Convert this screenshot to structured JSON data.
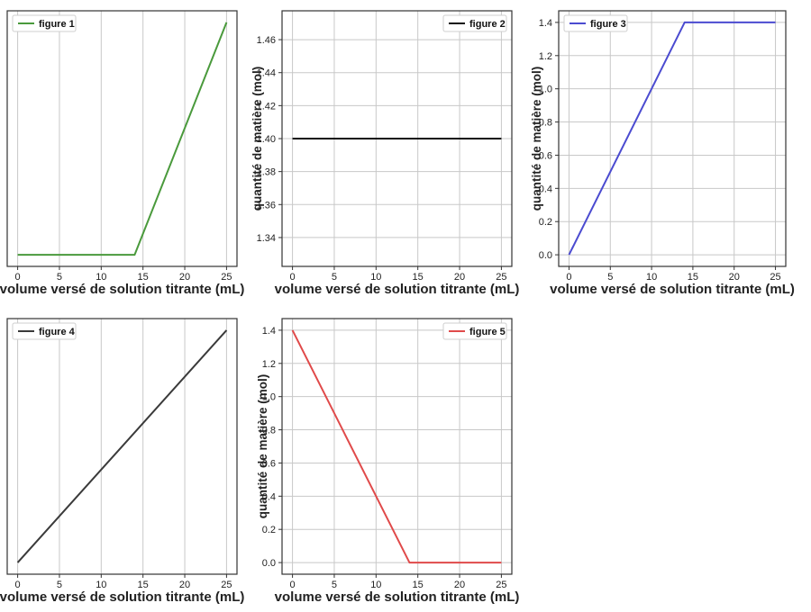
{
  "chart_data": [
    {
      "type": "line",
      "x": [
        0,
        14,
        25
      ],
      "series": [
        {
          "name": "figure 1",
          "color": "#4a9a3c",
          "values": [
            0.0,
            0.0,
            1.1
          ]
        }
      ],
      "xlabel": "volume versé de solution titrante (mL)",
      "ylabel": "",
      "xlim": [
        -1.25,
        26.25
      ],
      "ylim": [
        -0.055,
        1.155
      ],
      "xticks": [
        0,
        5,
        10,
        15,
        20,
        25
      ],
      "yticks": [],
      "ytick_labels": [],
      "grid": true,
      "legend": "upper left"
    },
    {
      "type": "line",
      "x": [
        0,
        25
      ],
      "series": [
        {
          "name": "figure 2",
          "color": "#111111",
          "values": [
            1.4,
            1.4
          ]
        }
      ],
      "xlabel": "volume versé de solution titrante (mL)",
      "ylabel": "quantité de matière (mol)",
      "xlim": [
        -1.25,
        26.25
      ],
      "ylim": [
        1.3225,
        1.4775
      ],
      "xticks": [
        0,
        5,
        10,
        15,
        20,
        25
      ],
      "yticks": [
        1.34,
        1.36,
        1.38,
        1.4,
        1.42,
        1.44,
        1.46
      ],
      "ytick_labels": [
        "1.34",
        "1.36",
        "1.38",
        "1.40",
        "1.42",
        "1.44",
        "1.46"
      ],
      "grid": true,
      "legend": "upper right"
    },
    {
      "type": "line",
      "x": [
        0,
        14,
        25
      ],
      "series": [
        {
          "name": "figure 3",
          "color": "#4b4bd0",
          "values": [
            0.0,
            1.4,
            1.4
          ]
        }
      ],
      "xlabel": "volume versé de solution titrante (mL)",
      "ylabel": "quantité de matière (mol)",
      "xlim": [
        -1.25,
        26.25
      ],
      "ylim": [
        -0.07,
        1.47
      ],
      "xticks": [
        0,
        5,
        10,
        15,
        20,
        25
      ],
      "yticks": [
        0.0,
        0.2,
        0.4,
        0.6,
        0.8,
        1.0,
        1.2,
        1.4
      ],
      "ytick_labels": [
        "0.0",
        "0.2",
        "0.4",
        "0.6",
        "0.8",
        "1.0",
        "1.2",
        "1.4"
      ],
      "grid": true,
      "legend": "upper left"
    },
    {
      "type": "line",
      "x": [
        0,
        25
      ],
      "series": [
        {
          "name": "figure 4",
          "color": "#3a3a3a",
          "values": [
            0.0,
            2.5
          ]
        }
      ],
      "xlabel": "volume versé de solution titrante (mL)",
      "ylabel": "",
      "xlim": [
        -1.25,
        26.25
      ],
      "ylim": [
        -0.125,
        2.625
      ],
      "xticks": [
        0,
        5,
        10,
        15,
        20,
        25
      ],
      "yticks": [],
      "ytick_labels": [],
      "grid": true,
      "legend": "upper left"
    },
    {
      "type": "line",
      "x": [
        0,
        14,
        25
      ],
      "series": [
        {
          "name": "figure 5",
          "color": "#e04a4a",
          "values": [
            1.4,
            0.0,
            0.0
          ]
        }
      ],
      "xlabel": "volume versé de solution titrante (mL)",
      "ylabel": "quantité de matière (mol)",
      "xlim": [
        -1.25,
        26.25
      ],
      "ylim": [
        -0.07,
        1.47
      ],
      "xticks": [
        0,
        5,
        10,
        15,
        20,
        25
      ],
      "yticks": [
        0.0,
        0.2,
        0.4,
        0.6,
        0.8,
        1.0,
        1.2,
        1.4
      ],
      "ytick_labels": [
        "0.0",
        "0.2",
        "0.4",
        "0.6",
        "0.8",
        "1.0",
        "1.2",
        "1.4"
      ],
      "grid": true,
      "legend": "upper right"
    }
  ]
}
